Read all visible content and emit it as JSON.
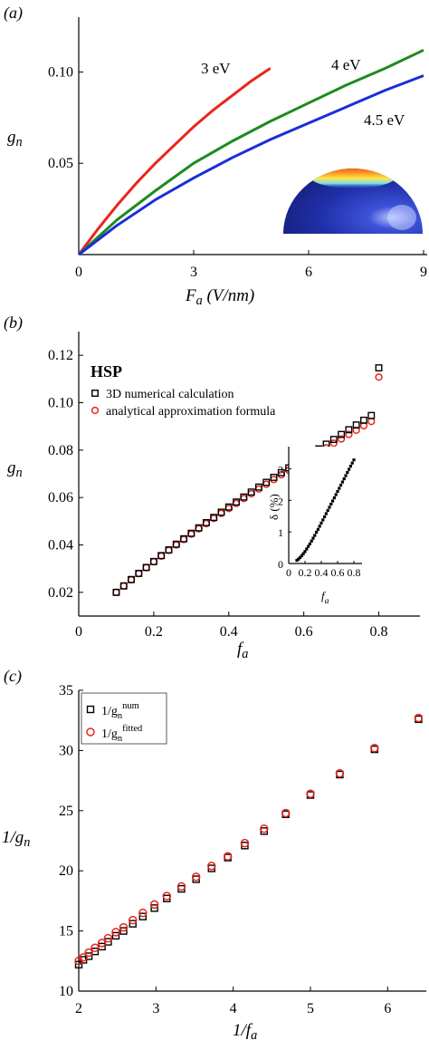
{
  "panels": {
    "a": {
      "label": "(a)"
    },
    "b": {
      "label": "(b)"
    },
    "c": {
      "label": "(c)"
    }
  },
  "chart_data": [
    {
      "id": "a",
      "type": "line",
      "xlabel": "F_a (V/nm)",
      "ylabel": "g_n",
      "xlim": [
        0,
        9
      ],
      "ylim": [
        0,
        0.13
      ],
      "xticks": [
        0,
        3,
        6,
        9
      ],
      "yticks": [
        0.05,
        0.1
      ],
      "ytick_labels": [
        "0.05",
        "0.10"
      ],
      "xtick_labels": [
        "0",
        "3",
        "6",
        "9"
      ],
      "series": [
        {
          "name": "3 eV",
          "color": "#e8261c",
          "x": [
            0,
            0.5,
            1,
            1.5,
            2,
            2.5,
            3,
            3.5,
            4,
            4.5,
            5
          ],
          "y": [
            0,
            0.014,
            0.027,
            0.039,
            0.05,
            0.06,
            0.07,
            0.079,
            0.087,
            0.095,
            0.102
          ]
        },
        {
          "name": "4 eV",
          "color": "#1f8a1f",
          "x": [
            0,
            1,
            2,
            3,
            4,
            5,
            6,
            7,
            8,
            9
          ],
          "y": [
            0,
            0.019,
            0.035,
            0.05,
            0.062,
            0.073,
            0.083,
            0.093,
            0.102,
            0.112
          ]
        },
        {
          "name": "4.5 eV",
          "color": "#1a2fd6",
          "x": [
            0,
            1,
            2,
            3,
            4,
            5,
            6,
            7,
            8,
            9
          ],
          "y": [
            0,
            0.016,
            0.03,
            0.042,
            0.053,
            0.063,
            0.072,
            0.081,
            0.09,
            0.098
          ]
        }
      ],
      "annotations": [
        "3 eV",
        "4 eV",
        "4.5 eV"
      ],
      "inset": {
        "icon": "hemisphere-field-map-icon",
        "colors": [
          "#1a237e",
          "#e53935",
          "#fdd835",
          "#b3e5fc"
        ]
      }
    },
    {
      "id": "b",
      "type": "scatter",
      "xlabel": "f_a",
      "ylabel": "g_n",
      "xlim": [
        0,
        0.9
      ],
      "ylim": [
        0.01,
        0.13
      ],
      "xticks": [
        0,
        0.2,
        0.4,
        0.6,
        0.8
      ],
      "xtick_labels": [
        "0",
        "0.2",
        "0.4",
        "0.6",
        "0.8"
      ],
      "yticks": [
        0.02,
        0.04,
        0.06,
        0.08,
        0.1,
        0.12
      ],
      "ytick_labels": [
        "0.02",
        "0.04",
        "0.06",
        "0.08",
        "0.10",
        "0.12"
      ],
      "legend": {
        "title": "HSP",
        "placement": "top-left"
      },
      "series": [
        {
          "name": "3D numerical calculation",
          "marker": "square",
          "color": "#000000",
          "x": [
            0.1,
            0.12,
            0.14,
            0.16,
            0.18,
            0.2,
            0.22,
            0.24,
            0.26,
            0.28,
            0.3,
            0.32,
            0.34,
            0.36,
            0.38,
            0.4,
            0.42,
            0.44,
            0.46,
            0.48,
            0.5,
            0.52,
            0.54,
            0.56,
            0.58,
            0.6,
            0.62,
            0.64,
            0.66,
            0.68,
            0.7,
            0.72,
            0.74,
            0.76,
            0.78,
            0.8
          ],
          "y": [
            0.02,
            0.0227,
            0.0254,
            0.028,
            0.0305,
            0.033,
            0.0355,
            0.0379,
            0.0403,
            0.0426,
            0.0449,
            0.0472,
            0.0494,
            0.0516,
            0.0538,
            0.056,
            0.0581,
            0.0602,
            0.0623,
            0.0644,
            0.0664,
            0.0685,
            0.0705,
            0.0725,
            0.0745,
            0.0765,
            0.0785,
            0.0805,
            0.0825,
            0.0845,
            0.0866,
            0.0886,
            0.0906,
            0.0926,
            0.0946,
            0.1147
          ]
        },
        {
          "name": "analytical approximation formula",
          "marker": "circle",
          "color": "#e8261c",
          "x": [
            0.1,
            0.12,
            0.14,
            0.16,
            0.18,
            0.2,
            0.22,
            0.24,
            0.26,
            0.28,
            0.3,
            0.32,
            0.34,
            0.36,
            0.38,
            0.4,
            0.42,
            0.44,
            0.46,
            0.48,
            0.5,
            0.52,
            0.54,
            0.56,
            0.58,
            0.6,
            0.62,
            0.64,
            0.66,
            0.68,
            0.7,
            0.72,
            0.74,
            0.76,
            0.78,
            0.8
          ],
          "y": [
            0.02,
            0.0227,
            0.0253,
            0.0279,
            0.0304,
            0.0329,
            0.0353,
            0.0377,
            0.04,
            0.0423,
            0.0446,
            0.0468,
            0.049,
            0.0512,
            0.0533,
            0.0554,
            0.0575,
            0.0596,
            0.0616,
            0.0636,
            0.0656,
            0.0676,
            0.0696,
            0.0715,
            0.0734,
            0.0753,
            0.0772,
            0.0791,
            0.081,
            0.0829,
            0.0847,
            0.0866,
            0.0884,
            0.0903,
            0.0921,
            0.1108
          ]
        }
      ],
      "inset": {
        "type": "line",
        "xlabel": "f_a",
        "ylabel": "δ (%)",
        "xlim": [
          0,
          0.9
        ],
        "ylim": [
          0,
          3.7
        ],
        "xticks": [
          0,
          0.2,
          0.4,
          0.6,
          0.8
        ],
        "xtick_labels": [
          "0",
          "0.2",
          "0.4",
          "0.6",
          "0.8"
        ],
        "yticks": [
          0,
          1,
          2,
          3
        ],
        "ytick_labels": [
          "0",
          "1",
          "2",
          "3"
        ],
        "x": [
          0.1,
          0.12,
          0.14,
          0.16,
          0.18,
          0.2,
          0.22,
          0.24,
          0.26,
          0.28,
          0.3,
          0.32,
          0.34,
          0.36,
          0.38,
          0.4,
          0.42,
          0.44,
          0.46,
          0.48,
          0.5,
          0.52,
          0.54,
          0.56,
          0.58,
          0.6,
          0.62,
          0.64,
          0.66,
          0.68,
          0.7,
          0.72,
          0.74,
          0.76,
          0.78,
          0.8
        ],
        "y": [
          0.1,
          0.14,
          0.19,
          0.25,
          0.31,
          0.38,
          0.46,
          0.54,
          0.62,
          0.71,
          0.8,
          0.89,
          0.99,
          1.08,
          1.18,
          1.28,
          1.38,
          1.48,
          1.58,
          1.68,
          1.78,
          1.88,
          1.98,
          2.08,
          2.18,
          2.28,
          2.38,
          2.48,
          2.58,
          2.68,
          2.78,
          2.88,
          2.98,
          3.08,
          3.18,
          3.28
        ]
      }
    },
    {
      "id": "c",
      "type": "scatter",
      "xlabel": "1/f_a",
      "ylabel": "1/g_n",
      "xlim": [
        2,
        6.5
      ],
      "ylim": [
        10,
        35
      ],
      "xticks": [
        2,
        3,
        4,
        5,
        6
      ],
      "xtick_labels": [
        "2",
        "3",
        "4",
        "5",
        "6"
      ],
      "yticks": [
        10,
        15,
        20,
        25,
        30,
        35
      ],
      "ytick_labels": [
        "10",
        "15",
        "20",
        "25",
        "30",
        "35"
      ],
      "legend": {
        "placement": "top-left"
      },
      "series": [
        {
          "name": "1/g_n^num",
          "marker": "square",
          "color": "#000000",
          "x": [
            2.0,
            2.06,
            2.13,
            2.21,
            2.3,
            2.38,
            2.48,
            2.58,
            2.7,
            2.83,
            2.98,
            3.14,
            3.33,
            3.52,
            3.72,
            3.93,
            4.15,
            4.4,
            4.68,
            5.0,
            5.38,
            5.83,
            6.4
          ],
          "y": [
            12.2,
            12.6,
            12.9,
            13.3,
            13.7,
            14.1,
            14.6,
            15.0,
            15.6,
            16.2,
            16.9,
            17.7,
            18.5,
            19.3,
            20.2,
            21.1,
            22.1,
            23.3,
            24.7,
            26.3,
            28.0,
            30.1,
            32.6
          ]
        },
        {
          "name": "1/g_n^fitted",
          "marker": "circle",
          "color": "#e8261c",
          "x": [
            2.0,
            2.06,
            2.13,
            2.21,
            2.3,
            2.38,
            2.48,
            2.58,
            2.7,
            2.83,
            2.98,
            3.14,
            3.33,
            3.52,
            3.72,
            3.93,
            4.15,
            4.4,
            4.68,
            5.0,
            5.38,
            5.83,
            6.4
          ],
          "y": [
            12.5,
            12.8,
            13.2,
            13.6,
            14.0,
            14.4,
            14.9,
            15.3,
            15.9,
            16.5,
            17.2,
            17.9,
            18.7,
            19.5,
            20.4,
            21.2,
            22.3,
            23.5,
            24.8,
            26.4,
            28.1,
            30.2,
            32.7
          ]
        }
      ]
    }
  ]
}
